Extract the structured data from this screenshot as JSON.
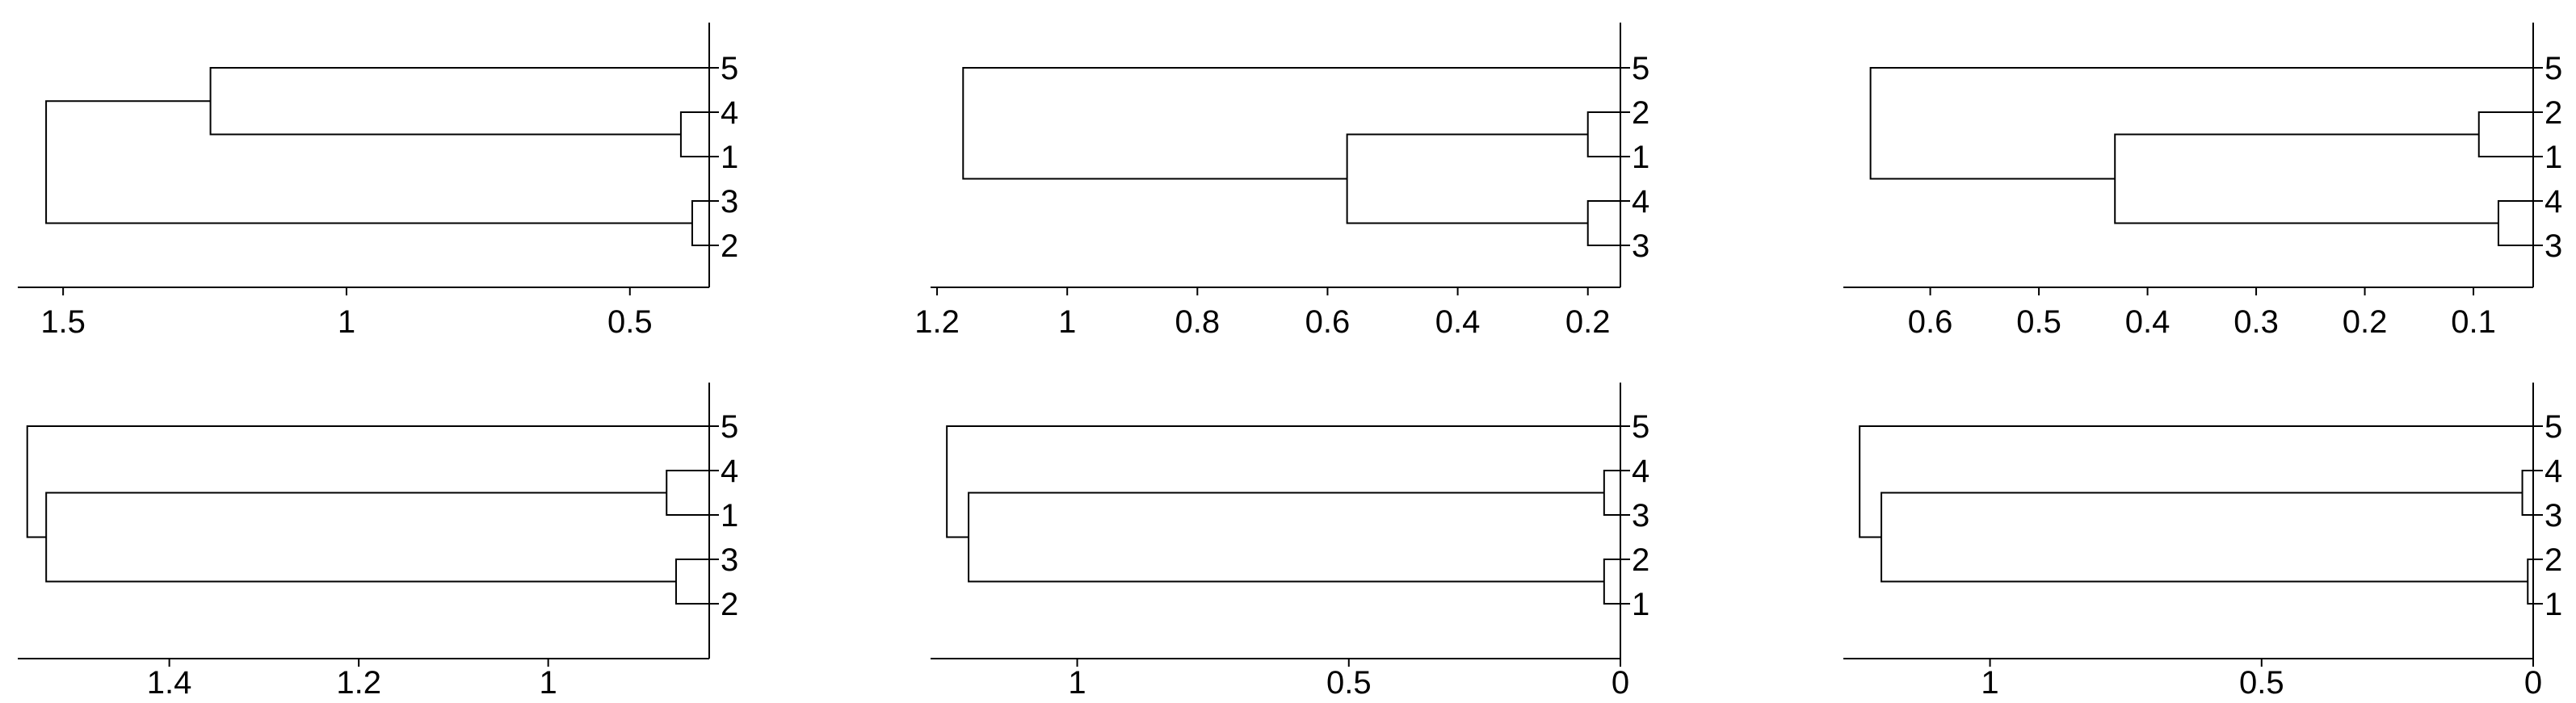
{
  "chart_data": [
    {
      "type": "dendrogram",
      "orientation": "leaves-right",
      "x_reversed": true,
      "xlim": [
        1.58,
        0.36
      ],
      "xticks": [
        1.5,
        1,
        0.5
      ],
      "xtick_labels": [
        "1.5",
        "1",
        "0.5"
      ],
      "leaf_order": [
        "5",
        "4",
        "1",
        "3",
        "2"
      ],
      "merges": [
        {
          "a": "4",
          "b": "1",
          "height": 0.41
        },
        {
          "a": "3",
          "b": "2",
          "height": 0.39
        },
        {
          "a": "5",
          "b": "4,1",
          "height": 1.24
        },
        {
          "a": "5,4,1",
          "b": "3,2",
          "height": 1.53
        }
      ]
    },
    {
      "type": "dendrogram",
      "orientation": "leaves-right",
      "x_reversed": true,
      "xlim": [
        1.21,
        0.15
      ],
      "xticks": [
        1.2,
        1,
        0.8,
        0.6,
        0.4,
        0.2
      ],
      "xtick_labels": [
        "1.2",
        "1",
        "0.8",
        "0.6",
        "0.4",
        "0.2"
      ],
      "leaf_order": [
        "5",
        "2",
        "1",
        "4",
        "3"
      ],
      "merges": [
        {
          "a": "2",
          "b": "1",
          "height": 0.2
        },
        {
          "a": "4",
          "b": "3",
          "height": 0.2
        },
        {
          "a": "2,1",
          "b": "4,3",
          "height": 0.57
        },
        {
          "a": "5",
          "b": "2,1,4,3",
          "height": 1.16
        }
      ]
    },
    {
      "type": "dendrogram",
      "orientation": "leaves-right",
      "x_reversed": true,
      "xlim": [
        0.68,
        0.045
      ],
      "xticks": [
        0.6,
        0.5,
        0.4,
        0.3,
        0.2,
        0.1
      ],
      "xtick_labels": [
        "0.6",
        "0.5",
        "0.4",
        "0.3",
        "0.2",
        "0.1"
      ],
      "leaf_order": [
        "5",
        "2",
        "1",
        "4",
        "3"
      ],
      "merges": [
        {
          "a": "2",
          "b": "1",
          "height": 0.095
        },
        {
          "a": "4",
          "b": "3",
          "height": 0.077
        },
        {
          "a": "2,1",
          "b": "4,3",
          "height": 0.43
        },
        {
          "a": "5",
          "b": "2,1,4,3",
          "height": 0.655
        }
      ]
    },
    {
      "type": "dendrogram",
      "orientation": "leaves-right",
      "x_reversed": true,
      "xlim": [
        1.56,
        0.83
      ],
      "xticks": [
        1.4,
        1.2,
        1
      ],
      "xtick_labels": [
        "1.4",
        "1.2",
        "1"
      ],
      "leaf_order": [
        "5",
        "4",
        "1",
        "3",
        "2"
      ],
      "merges": [
        {
          "a": "4",
          "b": "1",
          "height": 0.875
        },
        {
          "a": "3",
          "b": "2",
          "height": 0.865
        },
        {
          "a": "4,1",
          "b": "3,2",
          "height": 1.53
        },
        {
          "a": "5",
          "b": "4,1,3,2",
          "height": 1.55
        }
      ]
    },
    {
      "type": "dendrogram",
      "orientation": "leaves-right",
      "x_reversed": true,
      "xlim": [
        1.27,
        0
      ],
      "xticks": [
        1,
        0.5,
        0
      ],
      "xtick_labels": [
        "1",
        "0.5",
        "0"
      ],
      "leaf_order": [
        "5",
        "4",
        "3",
        "2",
        "1"
      ],
      "merges": [
        {
          "a": "4",
          "b": "3",
          "height": 0.03
        },
        {
          "a": "2",
          "b": "1",
          "height": 0.03
        },
        {
          "a": "4,3",
          "b": "2,1",
          "height": 1.2
        },
        {
          "a": "5",
          "b": "4,3,2,1",
          "height": 1.24
        }
      ]
    },
    {
      "type": "dendrogram",
      "orientation": "leaves-right",
      "x_reversed": true,
      "xlim": [
        1.27,
        0
      ],
      "xticks": [
        1,
        0.5,
        0
      ],
      "xtick_labels": [
        "1",
        "0.5",
        "0"
      ],
      "leaf_order": [
        "5",
        "4",
        "3",
        "2",
        "1"
      ],
      "merges": [
        {
          "a": "4",
          "b": "3",
          "height": 0.02
        },
        {
          "a": "2",
          "b": "1",
          "height": 0.01
        },
        {
          "a": "4,3",
          "b": "2,1",
          "height": 1.2
        },
        {
          "a": "5",
          "b": "4,3,2,1",
          "height": 1.24
        }
      ]
    }
  ]
}
